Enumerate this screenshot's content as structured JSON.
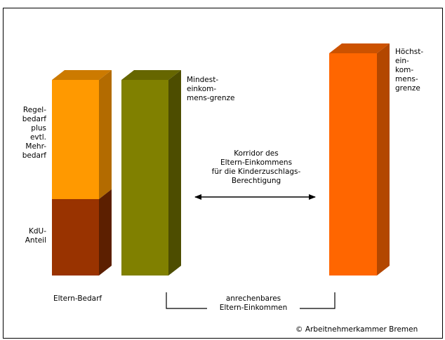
{
  "labels": {
    "regelbedarf": "Regel-\nbedarf\nplus\nevtl.\nMehr-\nbedarf",
    "kdu": "KdU-\nAnteil",
    "eltern_bedarf": "Eltern-Bedarf",
    "mindest": "Mindest-\neinkom-\nmens-grenze",
    "hoechst": "Höchst-\nein-\nkom-\nmens-\ngrenze",
    "korridor": "Korridor des\nEltern-Einkommens\nfür die Kinderzuschlags-\nBerechtigung",
    "anrechenbares": "anrechenbares\nEltern-Einkommen",
    "copyright": "© Arbeitnehmerkammer Bremen"
  },
  "colors": {
    "regelbedarf": "#FF9900",
    "kdu": "#993300",
    "mindest": "#808000",
    "hoechst": "#FF6600"
  }
}
